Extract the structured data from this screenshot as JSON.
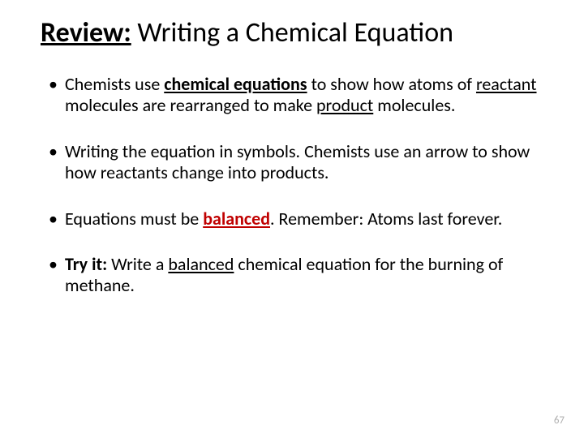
{
  "title": {
    "review_label": "Review:",
    "rest": " Writing a Chemical Equation"
  },
  "bullets": {
    "b1": {
      "t1": "Chemists use ",
      "t2": "chemical equations",
      "t3": " to show how atoms of ",
      "t4": "reactant ",
      "t5": "molecules are rearranged to make ",
      "t6": "product",
      "t7": " molecules."
    },
    "b2": {
      "t1": "Writing the equation in symbols. Chemists use an arrow to show how reactants change into products."
    },
    "b3": {
      "t1": "Equations must be ",
      "t2": "balanced",
      "t3": ". Remember: Atoms last forever."
    },
    "b4": {
      "t1": "Try it: ",
      "t2": "Write a ",
      "t3": "balanced",
      "t4": " chemical equation for the burning of methane."
    }
  },
  "page_number": "67",
  "colors": {
    "text": "#000000",
    "red": "#c00000",
    "page_num": "#b0b0b0",
    "background": "#ffffff"
  }
}
